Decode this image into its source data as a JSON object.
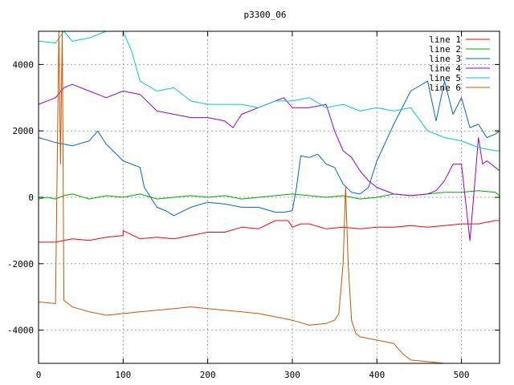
{
  "chart_data": {
    "type": "line",
    "title": "p3300_06",
    "xlabel": "",
    "ylabel": "",
    "xlim": [
      0,
      545
    ],
    "ylim": [
      -5000,
      5000
    ],
    "x_ticks": [
      0,
      100,
      200,
      300,
      400,
      500
    ],
    "y_ticks": [
      -4000,
      -2000,
      0,
      2000,
      4000
    ],
    "grid": true,
    "legend_position": "top-right",
    "series": [
      {
        "name": "line 1",
        "color": "#ff0000",
        "x": [
          0,
          20,
          40,
          60,
          80,
          100,
          100,
          120,
          140,
          160,
          180,
          200,
          220,
          240,
          260,
          280,
          295,
          300,
          310,
          320,
          340,
          360,
          380,
          400,
          420,
          440,
          460,
          480,
          500,
          520,
          540,
          545
        ],
        "y": [
          -1350,
          -1350,
          -1250,
          -1300,
          -1200,
          -1150,
          -1000,
          -1250,
          -1200,
          -1250,
          -1150,
          -1050,
          -1050,
          -900,
          -950,
          -700,
          -700,
          -900,
          -800,
          -800,
          -950,
          -900,
          -950,
          -900,
          -900,
          -850,
          -900,
          -850,
          -800,
          -800,
          -700,
          -700
        ]
      },
      {
        "name": "line 2",
        "color": "#00aa00",
        "x": [
          0,
          10,
          20,
          30,
          40,
          60,
          80,
          100,
          120,
          140,
          160,
          180,
          200,
          220,
          240,
          260,
          280,
          300,
          320,
          340,
          360,
          380,
          400,
          420,
          440,
          460,
          480,
          500,
          520,
          540,
          545
        ],
        "y": [
          -50,
          0,
          -50,
          50,
          100,
          -50,
          50,
          0,
          100,
          -50,
          0,
          50,
          0,
          50,
          -50,
          0,
          50,
          100,
          50,
          0,
          50,
          -50,
          0,
          100,
          50,
          100,
          150,
          150,
          200,
          150,
          50
        ]
      },
      {
        "name": "line 3",
        "color": "#0066cc",
        "x": [
          0,
          20,
          40,
          60,
          70,
          80,
          100,
          120,
          125,
          140,
          150,
          160,
          180,
          200,
          220,
          240,
          260,
          280,
          290,
          300,
          305,
          310,
          320,
          330,
          340,
          350,
          360,
          370,
          380,
          390,
          400,
          420,
          440,
          460,
          470,
          480,
          490,
          500,
          510,
          520,
          530,
          540,
          545
        ],
        "y": [
          1800,
          1650,
          1550,
          1700,
          2000,
          1600,
          1100,
          900,
          300,
          -300,
          -400,
          -550,
          -300,
          -150,
          -200,
          -300,
          -300,
          -450,
          -450,
          -400,
          300,
          1250,
          1200,
          1300,
          1000,
          900,
          400,
          150,
          100,
          300,
          1100,
          2200,
          3200,
          3500,
          2300,
          3500,
          2500,
          3000,
          2100,
          2200,
          1800,
          1900,
          2000
        ]
      },
      {
        "name": "line 4",
        "color": "#9900cc",
        "x": [
          0,
          20,
          30,
          40,
          60,
          80,
          100,
          120,
          140,
          160,
          180,
          200,
          220,
          230,
          240,
          260,
          280,
          290,
          300,
          320,
          340,
          350,
          360,
          370,
          380,
          390,
          400,
          420,
          440,
          460,
          470,
          480,
          490,
          500,
          510,
          515,
          520,
          525,
          530,
          540,
          545
        ],
        "y": [
          2800,
          3000,
          3300,
          3400,
          3200,
          3000,
          3200,
          3100,
          2600,
          2500,
          2400,
          2400,
          2300,
          2100,
          2500,
          2700,
          2900,
          3000,
          2700,
          2700,
          2800,
          2000,
          1400,
          1200,
          800,
          500,
          300,
          100,
          50,
          100,
          200,
          500,
          1000,
          1000,
          -1300,
          200,
          1800,
          1000,
          1100,
          900,
          800
        ]
      },
      {
        "name": "line 5",
        "color": "#00cccc",
        "x": [
          0,
          20,
          30,
          40,
          60,
          80,
          90,
          100,
          110,
          120,
          140,
          160,
          180,
          200,
          220,
          240,
          260,
          280,
          300,
          320,
          340,
          360,
          380,
          400,
          420,
          440,
          460,
          480,
          500,
          520,
          540,
          545
        ],
        "y": [
          4700,
          4650,
          5000,
          4700,
          4800,
          5000,
          5000,
          5000,
          4400,
          3500,
          3200,
          3300,
          2900,
          2800,
          2800,
          2800,
          2700,
          2900,
          2900,
          3000,
          2700,
          2800,
          2600,
          2700,
          2600,
          2700,
          2000,
          1800,
          1700,
          1500,
          1400,
          1400
        ]
      },
      {
        "name": "line 6",
        "color": "#cc5500",
        "x": [
          0,
          20,
          24,
          26,
          28,
          30,
          40,
          60,
          80,
          100,
          120,
          140,
          160,
          180,
          200,
          220,
          240,
          260,
          280,
          300,
          320,
          340,
          350,
          355,
          360,
          363,
          366,
          370,
          375,
          380,
          400,
          420,
          430,
          440,
          460,
          480,
          500,
          520,
          540,
          545
        ],
        "y": [
          -3150,
          -3200,
          5000,
          1000,
          5000,
          -3100,
          -3300,
          -3450,
          -3550,
          -3500,
          -3450,
          -3400,
          -3350,
          -3300,
          -3350,
          -3400,
          -3450,
          -3500,
          -3600,
          -3700,
          -3850,
          -3800,
          -3700,
          -3500,
          -2000,
          300,
          -2000,
          -3700,
          -4100,
          -4200,
          -4300,
          -4400,
          -4700,
          -4900,
          -4950,
          -5000,
          -5000,
          -5000,
          -5000,
          -5000
        ]
      }
    ]
  }
}
